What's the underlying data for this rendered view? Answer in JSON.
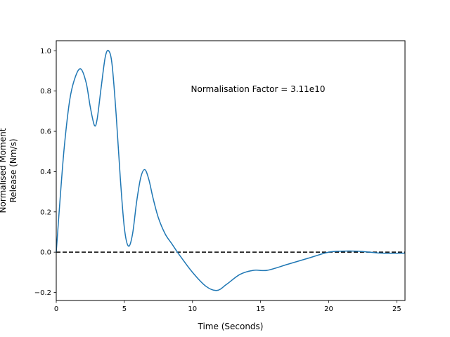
{
  "chart_data": {
    "type": "line",
    "xlabel": "Time (Seconds)",
    "ylabel_lines": [
      "Normalised Moment",
      "Release (Nm/s)"
    ],
    "annotation": "Normalisation Factor = 3.11e10",
    "xlim": [
      0,
      25.6
    ],
    "ylim": [
      -0.24,
      1.05
    ],
    "x_ticks": [
      0,
      5,
      10,
      15,
      20,
      25
    ],
    "x_tick_labels": [
      "0",
      "5",
      "10",
      "15",
      "20",
      "25"
    ],
    "y_ticks": [
      -0.2,
      0.0,
      0.2,
      0.4,
      0.6,
      0.8,
      1.0
    ],
    "y_tick_labels": [
      "−0.2",
      "0.0",
      "0.2",
      "0.4",
      "0.6",
      "0.8",
      "1.0"
    ],
    "grid": false,
    "series": [
      {
        "color": "#1f77b4",
        "x": [
          0,
          0.3,
          0.6,
          1.0,
          1.4,
          1.8,
          2.2,
          2.5,
          2.8,
          3.0,
          3.3,
          3.6,
          3.85,
          4.1,
          4.4,
          4.7,
          5.0,
          5.3,
          5.6,
          5.9,
          6.2,
          6.5,
          6.8,
          7.1,
          7.5,
          8.0,
          8.5,
          9.0,
          10.0,
          11.0,
          11.8,
          12.5,
          13.5,
          14.5,
          15.5,
          17.0,
          18.5,
          20.0,
          21.0,
          22.0,
          23.0,
          24.0,
          25.6
        ],
        "y": [
          0.0,
          0.28,
          0.53,
          0.76,
          0.87,
          0.91,
          0.84,
          0.72,
          0.63,
          0.66,
          0.82,
          0.97,
          1.0,
          0.93,
          0.68,
          0.37,
          0.12,
          0.03,
          0.09,
          0.25,
          0.37,
          0.41,
          0.36,
          0.27,
          0.17,
          0.09,
          0.04,
          -0.01,
          -0.1,
          -0.17,
          -0.19,
          -0.16,
          -0.11,
          -0.09,
          -0.09,
          -0.06,
          -0.03,
          0.0,
          0.005,
          0.005,
          0.0,
          -0.005,
          -0.005
        ]
      }
    ],
    "reference_line": {
      "y": 0.0,
      "color": "#000000",
      "style": "dashed"
    }
  }
}
